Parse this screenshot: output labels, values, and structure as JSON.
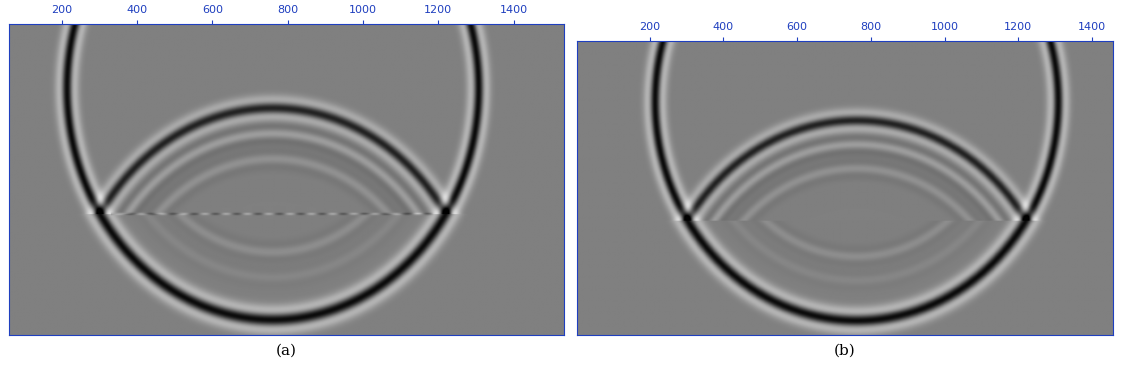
{
  "chart_data": [
    {
      "type": "image",
      "xlabel": "(a)",
      "xlim": [
        60,
        1535
      ],
      "xticks": [
        200,
        400,
        600,
        800,
        1000,
        1200,
        1400
      ],
      "tick_labels": "x"
    },
    {
      "type": "image",
      "xlabel": "(b)",
      "xlim": [
        2,
        1457
      ],
      "xticks": [
        200,
        400,
        600,
        800,
        1000,
        1200,
        1400
      ],
      "tick_labels": "x"
    }
  ]
}
